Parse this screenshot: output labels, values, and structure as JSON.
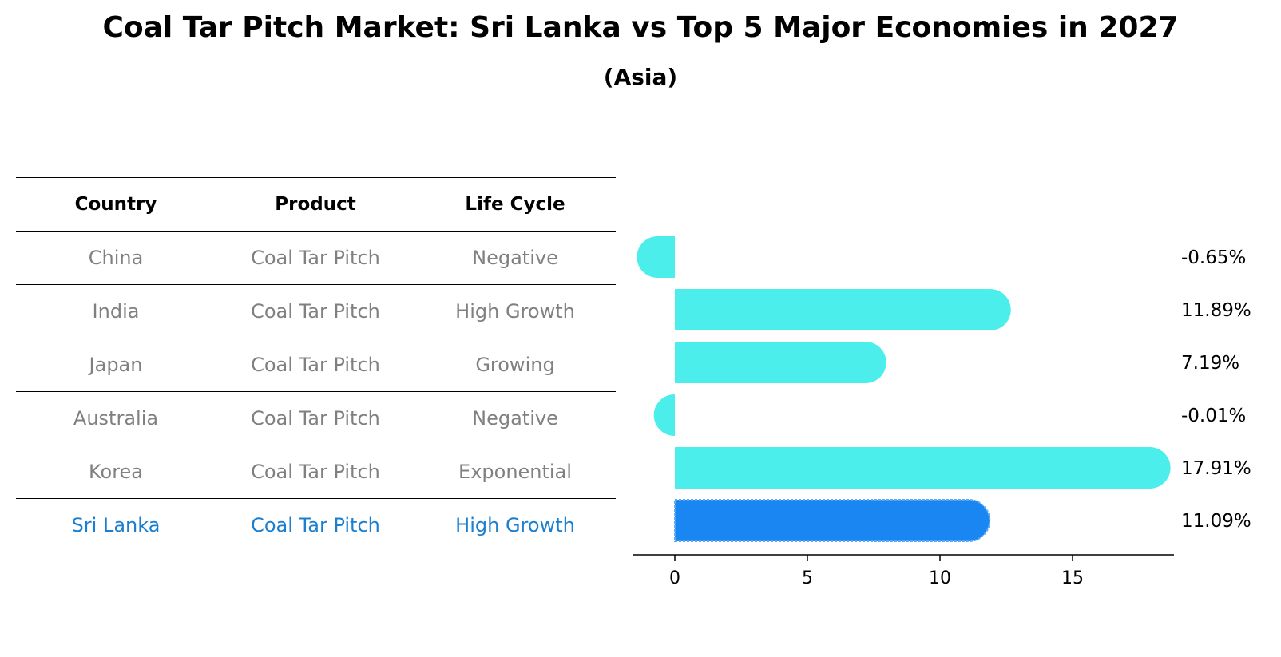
{
  "chart_data": {
    "type": "bar",
    "title": "Coal Tar Pitch Market: Sri Lanka vs Top 5 Major Economies in 2027",
    "subtitle": "(Asia)",
    "table": {
      "columns": [
        "Country",
        "Product",
        "Life Cycle"
      ],
      "rows": [
        {
          "country": "China",
          "product": "Coal Tar Pitch",
          "life_cycle": "Negative"
        },
        {
          "country": "India",
          "product": "Coal Tar Pitch",
          "life_cycle": "High Growth"
        },
        {
          "country": "Japan",
          "product": "Coal Tar Pitch",
          "life_cycle": "Growing"
        },
        {
          "country": "Australia",
          "product": "Coal Tar Pitch",
          "life_cycle": "Negative"
        },
        {
          "country": "Korea",
          "product": "Coal Tar Pitch",
          "life_cycle": "Exponential"
        },
        {
          "country": "Sri Lanka",
          "product": "Coal Tar Pitch",
          "life_cycle": "High Growth"
        }
      ]
    },
    "categories": [
      "China",
      "India",
      "Japan",
      "Australia",
      "Korea",
      "Sri Lanka"
    ],
    "values": [
      -0.65,
      11.89,
      7.19,
      -0.01,
      17.91,
      11.09
    ],
    "value_labels": [
      "-0.65%",
      "11.89%",
      "7.19%",
      "-0.01%",
      "17.91%",
      "11.09%"
    ],
    "highlight": "Sri Lanka",
    "xticks": [
      0,
      5,
      10,
      15
    ],
    "xlim": [
      -1.6,
      18.8
    ],
    "colors": {
      "bar": "#4ceeec",
      "highlight": "#1a86f2",
      "highlight_text": "#1a7fd0",
      "muted_text": "#808080"
    }
  }
}
